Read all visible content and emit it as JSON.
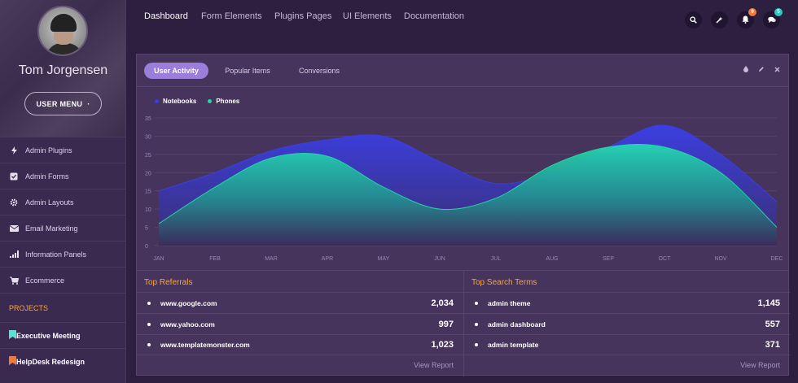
{
  "profile": {
    "name": "Tom Jorgensen",
    "menu_label": "USER MENU",
    "menu_caret": "·"
  },
  "sidebar": {
    "items": [
      {
        "label": "Admin Plugins",
        "icon": "bolt-icon"
      },
      {
        "label": "Admin Forms",
        "icon": "check-square-icon"
      },
      {
        "label": "Admin Layouts",
        "icon": "gear-icon"
      },
      {
        "label": "Email Marketing",
        "icon": "envelope-icon"
      },
      {
        "label": "Information Panels",
        "icon": "signal-bars-icon"
      },
      {
        "label": "Ecommerce",
        "icon": "cart-icon"
      }
    ],
    "section_label": "PROJECTS",
    "projects": [
      {
        "label": "Executive Meeting",
        "color": "#5de0d6"
      },
      {
        "label": "HelpDesk Redesign",
        "color": "#f07a3a"
      }
    ]
  },
  "topnav": {
    "links": [
      "Dashboard",
      "Form Elements",
      "Plugins Pages",
      "UI Elements",
      "Documentation"
    ],
    "notifications_count": "9",
    "messages_count": "5",
    "notifications_color": "#f07a3a",
    "messages_color": "#2fc7c0"
  },
  "panel": {
    "tabs": [
      "User Activity",
      "Popular Items",
      "Conversions"
    ]
  },
  "chart_data": {
    "type": "area",
    "categories": [
      "JAN",
      "FEB",
      "MAR",
      "APR",
      "MAY",
      "JUN",
      "JUL",
      "AUG",
      "SEP",
      "OCT",
      "NOV",
      "DEC"
    ],
    "ylim": [
      0,
      35
    ],
    "yticks": [
      0,
      5,
      10,
      15,
      20,
      25,
      30,
      35
    ],
    "grid": true,
    "legend": "top-left",
    "series": [
      {
        "name": "Notebooks",
        "color": "#3b3fe0",
        "values": [
          15,
          20,
          26,
          29,
          30,
          23,
          17,
          20,
          27,
          33,
          25,
          12
        ]
      },
      {
        "name": "Phones",
        "color": "#22d6a8",
        "values": [
          6,
          16,
          24,
          24.5,
          16,
          10,
          13,
          22,
          27,
          27,
          20,
          5
        ]
      }
    ]
  },
  "referrals": {
    "title": "Top Referrals",
    "rows": [
      {
        "name": "www.google.com",
        "value": "2,034"
      },
      {
        "name": "www.yahoo.com",
        "value": "997"
      },
      {
        "name": "www.templatemonster.com",
        "value": "1,023"
      }
    ],
    "link": "View Report"
  },
  "search_terms": {
    "title": "Top Search Terms",
    "rows": [
      {
        "name": "admin theme",
        "value": "1,145"
      },
      {
        "name": "admin dashboard",
        "value": "557"
      },
      {
        "name": "admin template",
        "value": "371"
      }
    ],
    "link": "View Report"
  }
}
